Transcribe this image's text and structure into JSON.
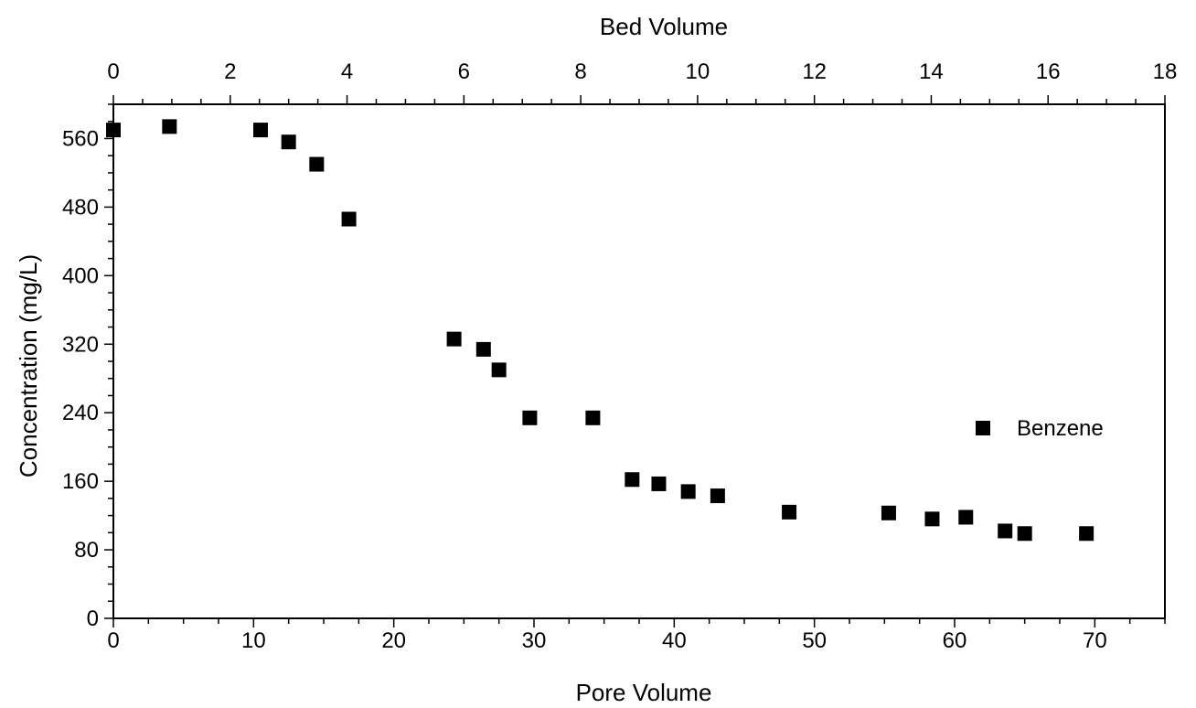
{
  "chart_data": {
    "type": "scatter",
    "xlabel": "Pore Volume",
    "x2label": "Bed Volume",
    "ylabel": "Concentration (mg/L)",
    "xlim": [
      0,
      75
    ],
    "x2lim": [
      0,
      18
    ],
    "ylim": [
      0,
      600
    ],
    "x_ticks": [
      0,
      10,
      20,
      30,
      40,
      50,
      60,
      70
    ],
    "x2_ticks": [
      0,
      2,
      4,
      6,
      8,
      10,
      12,
      14,
      16,
      18
    ],
    "y_ticks": [
      0,
      80,
      160,
      240,
      320,
      400,
      480,
      560
    ],
    "grid": false,
    "legend_position": "right",
    "series": [
      {
        "name": "Benzene",
        "marker": "square",
        "color": "#000000",
        "x": [
          0,
          4,
          10.5,
          12.5,
          14.5,
          16.8,
          24.3,
          26.4,
          27.5,
          29.7,
          34.2,
          37,
          38.9,
          41,
          43.1,
          48.2,
          55.3,
          58.4,
          60.8,
          63.6,
          65,
          69.4
        ],
        "y": [
          570,
          574,
          570,
          556,
          530,
          466,
          326,
          314,
          290,
          234,
          234,
          162,
          157,
          148,
          143,
          124,
          123,
          116,
          118,
          102,
          99,
          99
        ]
      }
    ]
  }
}
